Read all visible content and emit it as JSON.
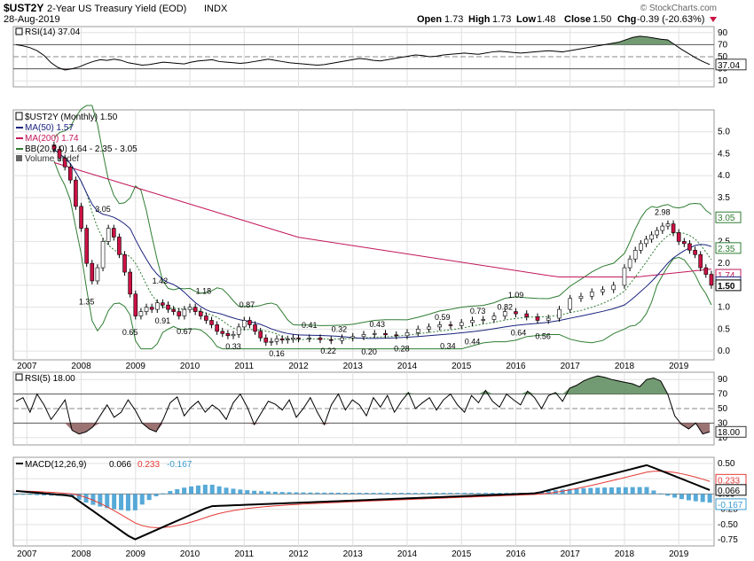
{
  "header": {
    "symbol": "$UST2Y",
    "description": "2-Year US Treasury Yield (EOD)",
    "exchange": "INDX",
    "date": "28-Aug-2019",
    "open_label": "Open",
    "open": "1.73",
    "high_label": "High",
    "high": "1.73",
    "low_label": "Low",
    "low": "1.48",
    "close_label": "Close",
    "close": "1.50",
    "chg_label": "Chg",
    "chg": "-0.39 (-20.63%)",
    "watermark": "© StockCharts.com"
  },
  "colors": {
    "up": "#ffffff",
    "down": "#cc1144",
    "ma50": "#1a237e",
    "ma200": "#c2185b",
    "bb": "#2e7d32",
    "rsi_fill_up": "#5a8a5a",
    "rsi_fill_down": "#8b5a5a",
    "macd": "#000000",
    "signal": "#e53935",
    "histogram": "#3a9bd1"
  },
  "rsi14_panel": {
    "legend": "RSI(14) 37.04",
    "axis_ticks": [
      "90",
      "70",
      "50",
      "30",
      "10"
    ],
    "levels": [
      90,
      70,
      50,
      30,
      10
    ],
    "last_value_badge": "37.04",
    "values": [
      70,
      68,
      65,
      60,
      52,
      40,
      32,
      28,
      30,
      33,
      38,
      42,
      45,
      44,
      46,
      44,
      40,
      38,
      36,
      37,
      39,
      41,
      40,
      39,
      38,
      41,
      43,
      44,
      45,
      42,
      41,
      40,
      39,
      40,
      42,
      44,
      46,
      44,
      42,
      40,
      39,
      38,
      37,
      36,
      37,
      39,
      41,
      43,
      45,
      47,
      46,
      44,
      43,
      45,
      47,
      49,
      51,
      53,
      52,
      50,
      51,
      53,
      54,
      55,
      56,
      55,
      54,
      56,
      58,
      59,
      58,
      57,
      56,
      57,
      58,
      59,
      60,
      59,
      58,
      60,
      62,
      64,
      66,
      68,
      70,
      72,
      74,
      78,
      82,
      84,
      83,
      81,
      79,
      78,
      70,
      62,
      55,
      48,
      42,
      37
    ]
  },
  "price_panel": {
    "legend_main": "$UST2Y (Monthly) 1.50",
    "legend_ma50": "MA(50) 1.57",
    "legend_ma200": "MA(200) 1.74",
    "legend_bb": "BB(20,2.0) 1.64 - 2.35 - 3.05",
    "legend_volume": "Volume undef",
    "axis_ticks": [
      "5.0",
      "4.5",
      "4.0",
      "3.5",
      "3.0",
      "2.5",
      "2.0",
      "1.5",
      "1.0",
      "0.5",
      "0.0"
    ],
    "axis_values": [
      5.0,
      4.5,
      4.0,
      3.5,
      3.0,
      2.5,
      2.0,
      1.5,
      1.0,
      0.5,
      0.0
    ],
    "badges": [
      {
        "label": "3.05",
        "value": 3.05,
        "color": "#2e7d32"
      },
      {
        "label": "2.35",
        "value": 2.35,
        "color": "#2e7d32"
      },
      {
        "label": "1.74",
        "value": 1.74,
        "color": "#c2185b"
      },
      {
        "label": "1.57",
        "value": 1.57,
        "color": "#1a237e"
      },
      {
        "label": "1.50",
        "value": 1.5,
        "color": "#000000"
      }
    ],
    "annotations": [
      {
        "label": "3.05",
        "x": 2008.4,
        "y": 3.05,
        "pos": "above"
      },
      {
        "label": "1.35",
        "x": 2008.1,
        "y": 1.35,
        "pos": "below"
      },
      {
        "label": "0.65",
        "x": 2008.9,
        "y": 0.65,
        "pos": "below"
      },
      {
        "label": "1.42",
        "x": 2009.45,
        "y": 1.42,
        "pos": "above"
      },
      {
        "label": "0.91",
        "x": 2009.5,
        "y": 0.91,
        "pos": "below"
      },
      {
        "label": "0.67",
        "x": 2009.9,
        "y": 0.67,
        "pos": "below"
      },
      {
        "label": "1.18",
        "x": 2010.25,
        "y": 1.18,
        "pos": "above"
      },
      {
        "label": "0.87",
        "x": 2011.05,
        "y": 0.87,
        "pos": "above"
      },
      {
        "label": "0.33",
        "x": 2010.8,
        "y": 0.33,
        "pos": "below"
      },
      {
        "label": "0.16",
        "x": 2011.6,
        "y": 0.16,
        "pos": "below"
      },
      {
        "label": "0.41",
        "x": 2012.2,
        "y": 0.41,
        "pos": "above"
      },
      {
        "label": "0.22",
        "x": 2012.55,
        "y": 0.22,
        "pos": "below"
      },
      {
        "label": "0.32",
        "x": 2012.75,
        "y": 0.32,
        "pos": "above"
      },
      {
        "label": "0.20",
        "x": 2013.3,
        "y": 0.2,
        "pos": "below"
      },
      {
        "label": "0.43",
        "x": 2013.45,
        "y": 0.43,
        "pos": "above"
      },
      {
        "label": "0.28",
        "x": 2013.9,
        "y": 0.28,
        "pos": "below"
      },
      {
        "label": "0.59",
        "x": 2014.65,
        "y": 0.59,
        "pos": "above"
      },
      {
        "label": "0.34",
        "x": 2014.75,
        "y": 0.34,
        "pos": "below"
      },
      {
        "label": "0.73",
        "x": 2015.3,
        "y": 0.73,
        "pos": "above"
      },
      {
        "label": "0.44",
        "x": 2015.2,
        "y": 0.44,
        "pos": "below"
      },
      {
        "label": "0.82",
        "x": 2015.8,
        "y": 0.82,
        "pos": "above"
      },
      {
        "label": "1.09",
        "x": 2016.0,
        "y": 1.09,
        "pos": "above"
      },
      {
        "label": "0.64",
        "x": 2016.05,
        "y": 0.64,
        "pos": "below"
      },
      {
        "label": "0.56",
        "x": 2016.5,
        "y": 0.56,
        "pos": "below"
      },
      {
        "label": "2.98",
        "x": 2018.7,
        "y": 2.98,
        "pos": "above"
      }
    ]
  },
  "rsi5_panel": {
    "legend": "RSI(5) 18.00",
    "axis_ticks": [
      "90",
      "70",
      "50",
      "30",
      "10"
    ],
    "levels": [
      90,
      70,
      50,
      30,
      10
    ],
    "last_value_badge": "18.00",
    "values": [
      60,
      65,
      45,
      70,
      55,
      35,
      48,
      62,
      20,
      15,
      18,
      25,
      40,
      55,
      38,
      45,
      62,
      48,
      30,
      22,
      18,
      35,
      58,
      66,
      40,
      52,
      60,
      45,
      55,
      48,
      35,
      58,
      70,
      52,
      28,
      44,
      60,
      56,
      48,
      62,
      38,
      50,
      65,
      45,
      28,
      55,
      70,
      48,
      62,
      55,
      40,
      65,
      52,
      68,
      45,
      60,
      72,
      50,
      58,
      65,
      48,
      62,
      70,
      55,
      45,
      68,
      58,
      75,
      60,
      52,
      70,
      62,
      55,
      74,
      65,
      50,
      68,
      72,
      60,
      78,
      82,
      88,
      92,
      95,
      93,
      90,
      88,
      86,
      84,
      80,
      90,
      92,
      88,
      70,
      40,
      28,
      22,
      30,
      15,
      18
    ]
  },
  "macd_panel": {
    "legend_label": "MACD(12,26,9)",
    "legend_macd": "0.066",
    "legend_signal": "0.233",
    "legend_hist": "-0.167",
    "axis_ticks": [
      "0.50",
      "0.25",
      "0.00",
      "-0.25",
      "-0.50",
      "-0.75"
    ],
    "axis_values": [
      0.5,
      0.25,
      0.0,
      -0.25,
      -0.5,
      -0.75
    ],
    "badges": [
      {
        "label": "0.233",
        "value": 0.233,
        "color": "#e53935"
      },
      {
        "label": "0.066",
        "value": 0.066,
        "color": "#000000"
      },
      {
        "label": "-0.167",
        "value": -0.167,
        "color": "#3a9bd1"
      }
    ]
  },
  "x_axis": {
    "years": [
      "2007",
      "2008",
      "2009",
      "2010",
      "2011",
      "2012",
      "2013",
      "2014",
      "2015",
      "2016",
      "2017",
      "2018",
      "2019"
    ],
    "year_values": [
      2007,
      2008,
      2009,
      2010,
      2011,
      2012,
      2013,
      2014,
      2015,
      2016,
      2017,
      2018,
      2019
    ],
    "xmin": 2006.75,
    "xmax": 2019.65
  },
  "chart_data": {
    "type": "candlestick",
    "title": "$UST2Y 2-Year US Treasury Yield (EOD) INDX",
    "ylim": [
      -0.2,
      5.5
    ],
    "series": [
      {
        "name": "$UST2Y (Monthly)",
        "x": [
          2007.5,
          2007.6,
          2007.7,
          2007.8,
          2007.9,
          2008.0,
          2008.1,
          2008.2,
          2008.3,
          2008.4,
          2008.5,
          2008.6,
          2008.7,
          2008.8,
          2008.9,
          2009.0,
          2009.1,
          2009.2,
          2009.3,
          2009.4,
          2009.5,
          2009.6,
          2009.7,
          2009.8,
          2009.9,
          2010.0,
          2010.1,
          2010.2,
          2010.3,
          2010.4,
          2010.5,
          2010.6,
          2010.7,
          2010.8,
          2010.9,
          2011.0,
          2011.1,
          2011.2,
          2011.3,
          2011.4,
          2011.5,
          2011.6,
          2011.7,
          2011.8,
          2011.9,
          2012.0,
          2012.2,
          2012.4,
          2012.6,
          2012.8,
          2013.0,
          2013.2,
          2013.4,
          2013.6,
          2013.8,
          2014.0,
          2014.2,
          2014.4,
          2014.6,
          2014.8,
          2015.0,
          2015.2,
          2015.4,
          2015.6,
          2015.8,
          2016.0,
          2016.2,
          2016.4,
          2016.6,
          2016.8,
          2017.0,
          2017.2,
          2017.4,
          2017.6,
          2017.8,
          2018.0,
          2018.1,
          2018.2,
          2018.3,
          2018.4,
          2018.5,
          2018.6,
          2018.7,
          2018.8,
          2018.9,
          2019.0,
          2019.1,
          2019.2,
          2019.3,
          2019.4,
          2019.5,
          2019.6
        ],
        "close": [
          4.6,
          4.4,
          4.2,
          3.9,
          3.3,
          2.8,
          2.0,
          1.6,
          1.9,
          2.5,
          2.8,
          2.6,
          2.2,
          1.8,
          1.3,
          0.8,
          0.9,
          1.0,
          0.95,
          1.1,
          1.05,
          0.95,
          0.9,
          0.8,
          0.95,
          1.0,
          0.9,
          0.8,
          0.7,
          0.6,
          0.45,
          0.4,
          0.35,
          0.38,
          0.55,
          0.7,
          0.6,
          0.45,
          0.3,
          0.2,
          0.22,
          0.28,
          0.25,
          0.27,
          0.3,
          0.28,
          0.3,
          0.26,
          0.24,
          0.3,
          0.33,
          0.38,
          0.4,
          0.37,
          0.35,
          0.42,
          0.5,
          0.55,
          0.6,
          0.58,
          0.65,
          0.7,
          0.72,
          0.8,
          0.9,
          0.85,
          0.78,
          0.7,
          0.75,
          0.95,
          1.2,
          1.25,
          1.35,
          1.4,
          1.5,
          1.9,
          2.1,
          2.3,
          2.45,
          2.55,
          2.65,
          2.75,
          2.85,
          2.9,
          2.7,
          2.5,
          2.45,
          2.3,
          2.2,
          1.9,
          1.75,
          1.5
        ]
      }
    ]
  }
}
